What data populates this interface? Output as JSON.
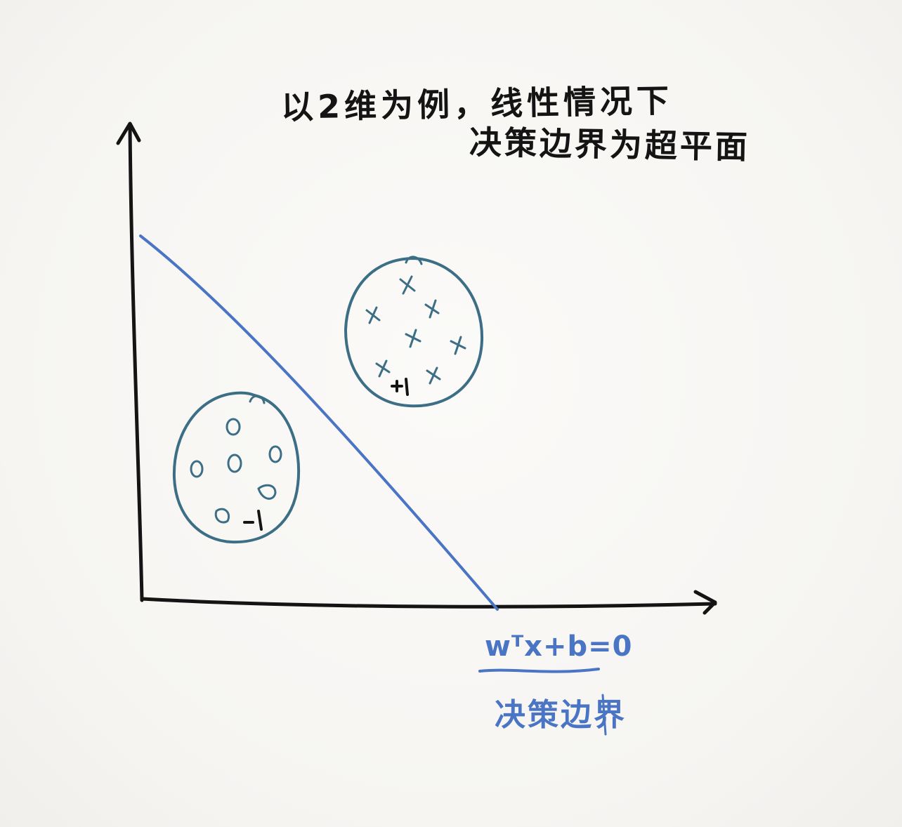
{
  "title": {
    "line1": "以2维为例，线性情况下",
    "line2": "决策边界为超平面"
  },
  "boundary": {
    "equation": "wᵀx+b=0",
    "label": "决策边界"
  },
  "clusters": {
    "positive": {
      "marker": "x",
      "count": 8,
      "label": "+1"
    },
    "negative": {
      "marker": "o",
      "count": 6,
      "label": "-1"
    }
  },
  "colors": {
    "ink": "#141414",
    "boundary": "#4a74c4",
    "cluster": "#3c6e86"
  }
}
